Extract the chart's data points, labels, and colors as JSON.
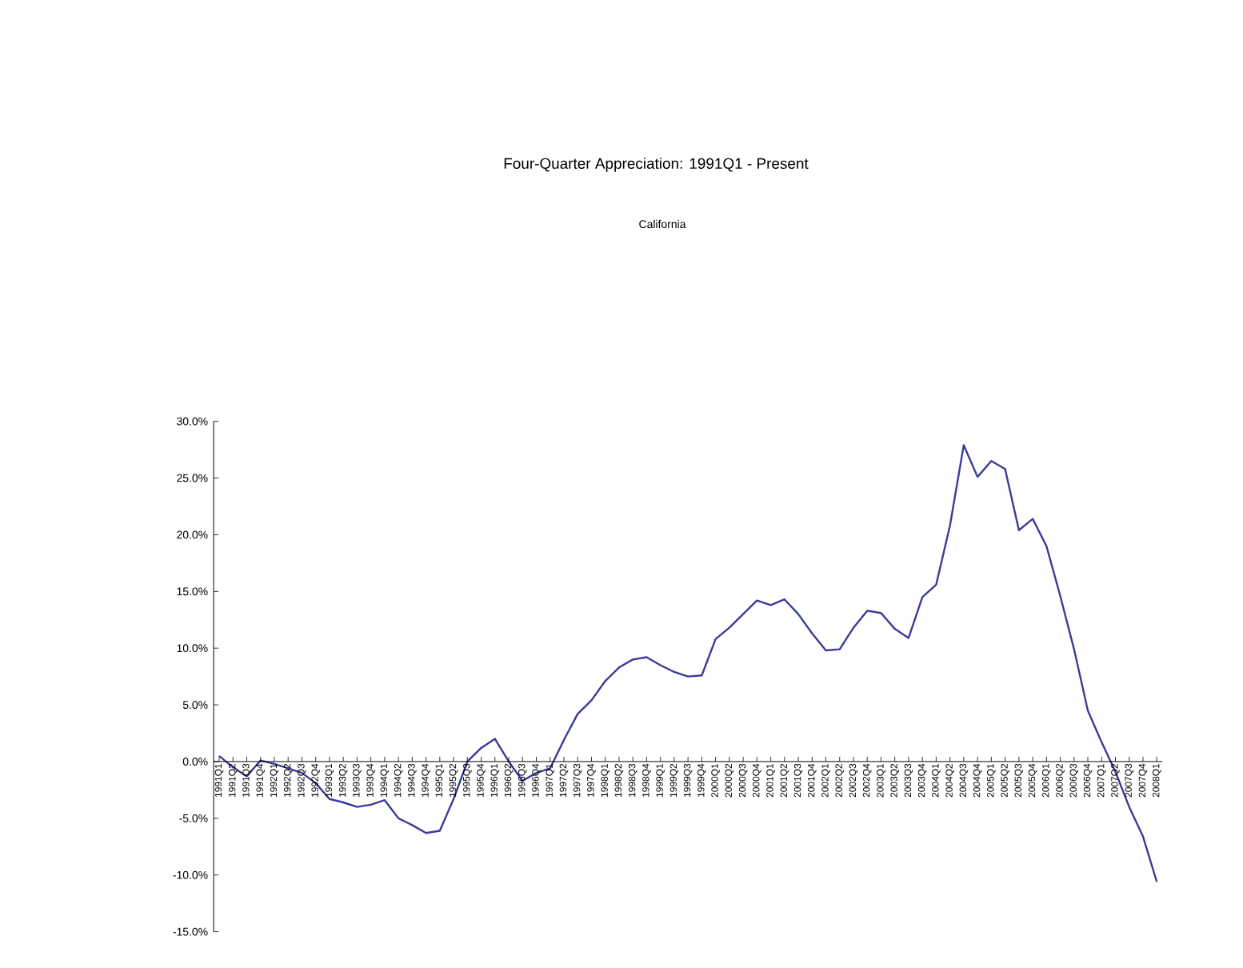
{
  "chart_data": {
    "type": "line",
    "title": "Four-Quarter Appreciation: 1991Q1 - Present",
    "subtitle": "California",
    "categories": [
      "1991Q1",
      "1991Q2",
      "1991Q3",
      "1991Q4",
      "1992Q1",
      "1992Q2",
      "1992Q3",
      "1992Q4",
      "1993Q1",
      "1993Q2",
      "1993Q3",
      "1993Q4",
      "1994Q1",
      "1994Q2",
      "1994Q3",
      "1994Q4",
      "1995Q1",
      "1995Q2",
      "1995Q3",
      "1995Q4",
      "1996Q1",
      "1996Q2",
      "1996Q3",
      "1996Q4",
      "1997Q1",
      "1997Q2",
      "1997Q3",
      "1997Q4",
      "1998Q1",
      "1998Q2",
      "1998Q3",
      "1998Q4",
      "1999Q1",
      "1999Q2",
      "1999Q3",
      "1999Q4",
      "2000Q1",
      "2000Q2",
      "2000Q3",
      "2000Q4",
      "2001Q1",
      "2001Q2",
      "2001Q3",
      "2001Q4",
      "2002Q1",
      "2002Q2",
      "2002Q3",
      "2002Q4",
      "2003Q1",
      "2003Q2",
      "2003Q3",
      "2003Q4",
      "2004Q1",
      "2004Q2",
      "2004Q3",
      "2004Q4",
      "2005Q1",
      "2005Q2",
      "2005Q3",
      "2005Q4",
      "2006Q1",
      "2006Q2",
      "2006Q3",
      "2006Q4",
      "2007Q1",
      "2007Q2",
      "2007Q3",
      "2007Q4",
      "2008Q1"
    ],
    "series": [
      {
        "color": "#3a3a9a",
        "values": [
          0.5,
          -0.5,
          -1.3,
          0.1,
          -0.2,
          -0.6,
          -1.0,
          -1.9,
          -3.3,
          -3.6,
          -4.0,
          -3.8,
          -3.4,
          -5.0,
          -5.6,
          -6.3,
          -6.1,
          -3.3,
          0,
          1.2,
          2.0,
          0,
          -1.7,
          -1.0,
          -0.6,
          1.9,
          4.2,
          5.4,
          7.1,
          8.3,
          9.0,
          9.2,
          8.5,
          7.9,
          7.5,
          7.6,
          10.8,
          11.8,
          13.0,
          14.2,
          13.8,
          14.3,
          13.0,
          11.3,
          9.8,
          9.9,
          11.8,
          13.3,
          13.1,
          11.7,
          10.9,
          14.5,
          15.6,
          20.8,
          27.9,
          25.1,
          26.5,
          25.8,
          20.4,
          21.4,
          19.0,
          14.6,
          9.9,
          4.5,
          1.7,
          -0.9,
          -4.0,
          -6.6,
          -10.6
        ]
      }
    ],
    "ylim": [
      -15,
      30
    ],
    "yticks": [
      {
        "value": -15,
        "label": "-15.0%"
      },
      {
        "value": -10,
        "label": "-10.0%"
      },
      {
        "value": -5,
        "label": "-5.0%"
      },
      {
        "value": 0,
        "label": "0.0%"
      },
      {
        "value": 5,
        "label": "5.0%"
      },
      {
        "value": 10,
        "label": "10.0%"
      },
      {
        "value": 15,
        "label": "15.0%"
      },
      {
        "value": 20,
        "label": "20.0%"
      },
      {
        "value": 25,
        "label": "25.0%"
      },
      {
        "value": 30,
        "label": "30.0%"
      }
    ]
  }
}
